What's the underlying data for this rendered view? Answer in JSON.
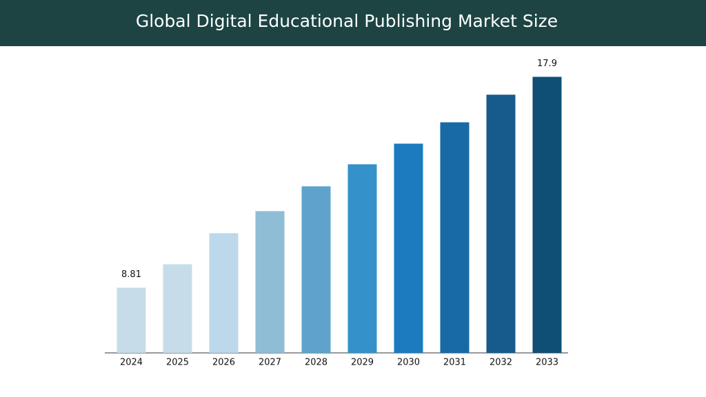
{
  "chart_data": {
    "type": "bar",
    "title": "Global Digital Educational Publishing Market Size",
    "categories": [
      "2024",
      "2025",
      "2026",
      "2027",
      "2028",
      "2029",
      "2030",
      "2031",
      "2032",
      "2033"
    ],
    "values": [
      8.81,
      9.82,
      11.16,
      12.11,
      13.18,
      14.13,
      15.02,
      15.94,
      17.13,
      17.9
    ],
    "colors": [
      "#c6dde9",
      "#c6dde9",
      "#bdd8ea",
      "#8fbdd6",
      "#5fa3cc",
      "#3591c9",
      "#1c7bbf",
      "#186aa6",
      "#165b8b",
      "#0f4f76"
    ],
    "data_labels": "ends",
    "ylim": [
      6,
      20
    ]
  }
}
